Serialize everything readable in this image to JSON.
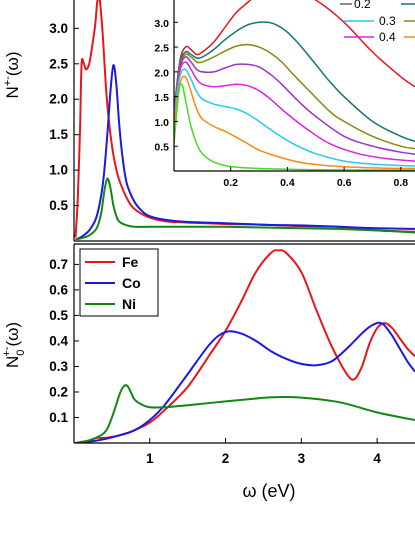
{
  "chart_data": [
    {
      "id": "top",
      "type": "line",
      "ylabel": "N+-(ω)",
      "ylabel_main": "N",
      "ylabel_sup": "+-",
      "ylabel_tail": "(ω)",
      "xlim": [
        0,
        4.5
      ],
      "ylim": [
        0,
        3.4
      ],
      "yticks": [
        "0.5",
        "1.0",
        "1.5",
        "2.0",
        "2.5",
        "3.0"
      ],
      "ytick_values": [
        0.5,
        1.0,
        1.5,
        2.0,
        2.5,
        3.0
      ],
      "series": [
        {
          "color": "#e8161b",
          "x": [
            0.02,
            0.05,
            0.08,
            0.1,
            0.13,
            0.16,
            0.2,
            0.24,
            0.28,
            0.31,
            0.34,
            0.38,
            0.42,
            0.46,
            0.5,
            0.55,
            0.6,
            0.7,
            0.8,
            1.0,
            1.2,
            1.5,
            2.0,
            2.5,
            3.0,
            3.5,
            4.0,
            4.5
          ],
          "y": [
            0.05,
            0.6,
            1.6,
            2.5,
            2.5,
            2.42,
            2.5,
            2.75,
            3.05,
            3.4,
            3.4,
            2.9,
            2.2,
            1.7,
            1.35,
            1.05,
            0.85,
            0.6,
            0.45,
            0.33,
            0.28,
            0.26,
            0.24,
            0.23,
            0.21,
            0.2,
            0.15,
            0.13
          ]
        },
        {
          "color": "#1a1ae0",
          "x": [
            0.02,
            0.1,
            0.2,
            0.3,
            0.38,
            0.44,
            0.48,
            0.52,
            0.56,
            0.6,
            0.65,
            0.7,
            0.8,
            0.9,
            1.0,
            1.2,
            1.5,
            2.0,
            2.5,
            3.0,
            3.5,
            4.0,
            4.5
          ],
          "y": [
            0.02,
            0.06,
            0.15,
            0.35,
            0.8,
            1.5,
            2.1,
            2.48,
            2.2,
            1.6,
            1.1,
            0.8,
            0.55,
            0.42,
            0.35,
            0.3,
            0.27,
            0.25,
            0.23,
            0.22,
            0.2,
            0.18,
            0.17
          ]
        },
        {
          "color": "#118811",
          "x": [
            0.02,
            0.1,
            0.2,
            0.3,
            0.36,
            0.4,
            0.44,
            0.48,
            0.52,
            0.56,
            0.6,
            0.7,
            0.8,
            1.0,
            1.3,
            1.6,
            2.0,
            2.5,
            3.0,
            3.5,
            4.0,
            4.5
          ],
          "y": [
            0.02,
            0.04,
            0.08,
            0.18,
            0.4,
            0.7,
            0.88,
            0.75,
            0.5,
            0.35,
            0.27,
            0.22,
            0.2,
            0.2,
            0.2,
            0.2,
            0.2,
            0.19,
            0.18,
            0.17,
            0.15,
            0.12
          ]
        }
      ]
    },
    {
      "id": "inset",
      "type": "line",
      "xlim": [
        0,
        0.85
      ],
      "ylim": [
        0,
        3.45
      ],
      "xticks": [
        "0.2",
        "0.4",
        "0.6",
        "0.8"
      ],
      "xtick_values": [
        0.2,
        0.4,
        0.6,
        0.8
      ],
      "yticks": [
        "0.5",
        "1.0",
        "1.5",
        "2.0",
        "2.5",
        "3.0"
      ],
      "ytick_values": [
        0.5,
        1.0,
        1.5,
        2.0,
        2.5,
        3.0
      ],
      "legend": [
        {
          "label": "0.3",
          "color": "#22ccee"
        },
        {
          "label": "0.4",
          "color": "#dd22dd"
        }
      ],
      "series": [
        {
          "color": "#e8161b",
          "x": [
            0.0,
            0.02,
            0.04,
            0.06,
            0.08,
            0.1,
            0.14,
            0.18,
            0.22,
            0.26,
            0.3,
            0.34,
            0.38,
            0.42,
            0.5,
            0.6,
            0.7,
            0.8,
            0.85
          ],
          "y": [
            1.2,
            2.2,
            2.5,
            2.45,
            2.35,
            2.4,
            2.6,
            2.9,
            3.2,
            3.4,
            3.6,
            3.7,
            3.7,
            3.65,
            3.45,
            3.0,
            2.4,
            1.9,
            1.7
          ]
        },
        {
          "color": "#117777",
          "x": [
            0.0,
            0.02,
            0.04,
            0.06,
            0.08,
            0.1,
            0.14,
            0.18,
            0.22,
            0.26,
            0.3,
            0.33,
            0.36,
            0.4,
            0.45,
            0.5,
            0.55,
            0.6,
            0.7,
            0.8,
            0.85
          ],
          "y": [
            1.2,
            2.15,
            2.4,
            2.35,
            2.28,
            2.3,
            2.45,
            2.65,
            2.82,
            2.95,
            3.0,
            3.0,
            2.95,
            2.8,
            2.5,
            2.15,
            1.8,
            1.5,
            1.0,
            0.7,
            0.6
          ]
        },
        {
          "color": "#888811",
          "x": [
            0.0,
            0.02,
            0.04,
            0.06,
            0.08,
            0.1,
            0.14,
            0.18,
            0.22,
            0.26,
            0.3,
            0.34,
            0.38,
            0.42,
            0.48,
            0.55,
            0.6,
            0.7,
            0.8,
            0.85
          ],
          "y": [
            1.2,
            2.1,
            2.35,
            2.3,
            2.2,
            2.2,
            2.3,
            2.42,
            2.52,
            2.55,
            2.5,
            2.38,
            2.2,
            1.95,
            1.6,
            1.2,
            1.0,
            0.7,
            0.5,
            0.45
          ]
        },
        {
          "color": "#9933cc",
          "x": [
            0.0,
            0.02,
            0.04,
            0.06,
            0.08,
            0.1,
            0.14,
            0.18,
            0.22,
            0.26,
            0.3,
            0.34,
            0.38,
            0.44,
            0.5,
            0.6,
            0.7,
            0.8,
            0.85
          ],
          "y": [
            1.15,
            2.05,
            2.3,
            2.2,
            2.05,
            2.0,
            2.0,
            2.08,
            2.15,
            2.15,
            2.1,
            1.95,
            1.75,
            1.4,
            1.1,
            0.7,
            0.5,
            0.38,
            0.34
          ]
        },
        {
          "color": "#dd22dd",
          "x": [
            0.0,
            0.02,
            0.04,
            0.06,
            0.08,
            0.1,
            0.14,
            0.18,
            0.22,
            0.26,
            0.3,
            0.34,
            0.4,
            0.48,
            0.55,
            0.65,
            0.75,
            0.85
          ],
          "y": [
            1.1,
            2.0,
            2.2,
            2.05,
            1.85,
            1.75,
            1.7,
            1.72,
            1.75,
            1.72,
            1.62,
            1.45,
            1.15,
            0.8,
            0.55,
            0.35,
            0.25,
            0.2
          ]
        },
        {
          "color": "#22ccee",
          "x": [
            0.0,
            0.02,
            0.04,
            0.06,
            0.08,
            0.1,
            0.14,
            0.18,
            0.22,
            0.26,
            0.3,
            0.35,
            0.42,
            0.5,
            0.6,
            0.7,
            0.85
          ],
          "y": [
            1.05,
            1.9,
            2.05,
            1.85,
            1.6,
            1.45,
            1.35,
            1.3,
            1.25,
            1.15,
            1.0,
            0.8,
            0.55,
            0.35,
            0.2,
            0.14,
            0.1
          ]
        },
        {
          "color": "#ff8811",
          "x": [
            0.0,
            0.02,
            0.04,
            0.06,
            0.08,
            0.1,
            0.14,
            0.18,
            0.22,
            0.26,
            0.3,
            0.36,
            0.44,
            0.52,
            0.62,
            0.72,
            0.85
          ],
          "y": [
            0.9,
            1.75,
            1.9,
            1.6,
            1.25,
            1.05,
            0.9,
            0.8,
            0.68,
            0.55,
            0.42,
            0.3,
            0.18,
            0.12,
            0.08,
            0.06,
            0.05
          ]
        },
        {
          "color": "#44dd22",
          "x": [
            0.0,
            0.01,
            0.02,
            0.03,
            0.04,
            0.06,
            0.08,
            0.1,
            0.14,
            0.2,
            0.3,
            0.45,
            0.6,
            0.85
          ],
          "y": [
            0.55,
            1.2,
            1.7,
            1.72,
            1.45,
            0.9,
            0.55,
            0.35,
            0.18,
            0.09,
            0.05,
            0.03,
            0.02,
            0.02
          ]
        }
      ]
    },
    {
      "id": "bottom",
      "type": "line",
      "xlabel": "ω (eV)",
      "ylabel": "N0+-(ω)",
      "ylabel_main": "N",
      "ylabel_sup": "+-",
      "ylabel_sub": "0",
      "ylabel_tail": "(ω)",
      "xlim": [
        0,
        4.5
      ],
      "ylim": [
        0,
        0.78
      ],
      "xticks": [
        "1",
        "2",
        "3",
        "4"
      ],
      "xtick_values": [
        1,
        2,
        3,
        4
      ],
      "yticks": [
        "0.1",
        "0.2",
        "0.3",
        "0.4",
        "0.5",
        "0.6",
        "0.7"
      ],
      "ytick_values": [
        0.1,
        0.2,
        0.3,
        0.4,
        0.5,
        0.6,
        0.7
      ],
      "legend": [
        {
          "label": "Fe",
          "color": "#e8161b"
        },
        {
          "label": "Co",
          "color": "#1a1ae0"
        },
        {
          "label": "Ni",
          "color": "#118811"
        }
      ],
      "series": [
        {
          "color": "#e8161b",
          "x": [
            0.02,
            0.2,
            0.3,
            0.4,
            0.6,
            0.8,
            1.0,
            1.2,
            1.5,
            1.8,
            2.0,
            2.2,
            2.4,
            2.6,
            2.7,
            2.8,
            3.0,
            3.2,
            3.4,
            3.6,
            3.7,
            3.8,
            3.9,
            4.0,
            4.1,
            4.2,
            4.3,
            4.4,
            4.5
          ],
          "y": [
            0.0,
            0.01,
            0.02,
            0.02,
            0.03,
            0.05,
            0.08,
            0.13,
            0.22,
            0.35,
            0.44,
            0.55,
            0.67,
            0.745,
            0.755,
            0.745,
            0.67,
            0.52,
            0.38,
            0.27,
            0.25,
            0.3,
            0.39,
            0.45,
            0.47,
            0.45,
            0.41,
            0.37,
            0.34
          ]
        },
        {
          "color": "#1a1ae0",
          "x": [
            0.02,
            0.2,
            0.4,
            0.6,
            0.8,
            1.0,
            1.2,
            1.5,
            1.8,
            2.0,
            2.2,
            2.4,
            2.6,
            2.8,
            3.0,
            3.2,
            3.4,
            3.6,
            3.8,
            3.9,
            4.0,
            4.05,
            4.1,
            4.2,
            4.3,
            4.4,
            4.5
          ],
          "y": [
            0.0,
            0.005,
            0.015,
            0.03,
            0.05,
            0.09,
            0.15,
            0.27,
            0.39,
            0.435,
            0.43,
            0.4,
            0.36,
            0.33,
            0.31,
            0.305,
            0.32,
            0.37,
            0.43,
            0.455,
            0.47,
            0.47,
            0.46,
            0.42,
            0.37,
            0.32,
            0.28
          ]
        },
        {
          "color": "#118811",
          "x": [
            0.02,
            0.2,
            0.4,
            0.5,
            0.6,
            0.65,
            0.7,
            0.75,
            0.8,
            0.9,
            1.0,
            1.2,
            1.5,
            2.0,
            2.5,
            2.7,
            3.0,
            3.5,
            4.0,
            4.5
          ],
          "y": [
            0.0,
            0.01,
            0.04,
            0.1,
            0.19,
            0.22,
            0.225,
            0.2,
            0.17,
            0.15,
            0.14,
            0.14,
            0.148,
            0.163,
            0.177,
            0.18,
            0.178,
            0.16,
            0.12,
            0.09
          ]
        }
      ]
    }
  ]
}
